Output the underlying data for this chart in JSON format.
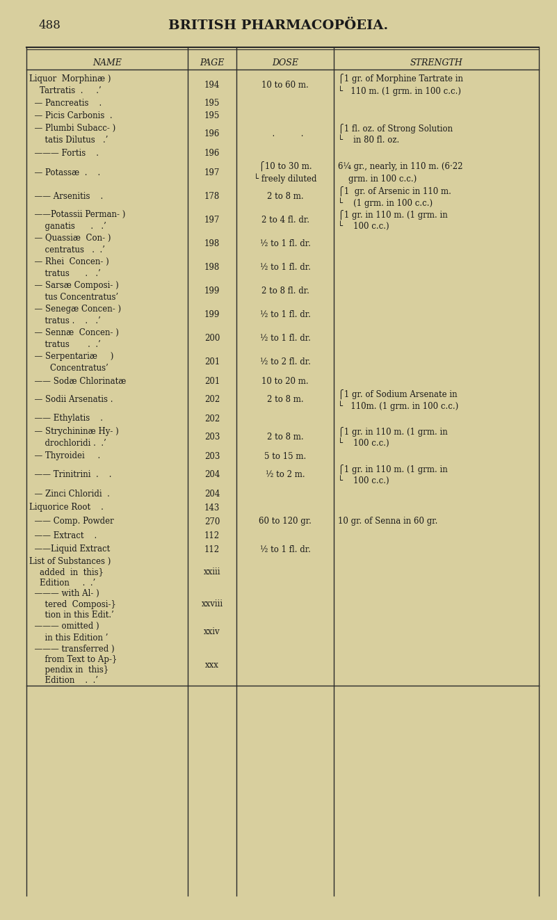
{
  "bg_color": "#d8cf9e",
  "page_num": "488",
  "page_title": "BRITISH PHARMACOPÖEIA.",
  "col_headers": [
    "NAME",
    "PAGE",
    "DOSE",
    "STRENGTH"
  ],
  "rows": [
    {
      "name": "Liquor  Morphinæ\n    Tartratis  .     .⎫",
      "name_lines": [
        "Liquor  Morphinæ )",
        "    Tartratis  .     .}"
      ],
      "page": "194",
      "dose": "10 to 60 m.",
      "strength": "1 gr. of Morphine Tartrate in\n    110 m. (1 grm. in 100 c.c.)",
      "strength_lines": [
        "⎧1 gr. of Morphine Tartrate in",
        "└   110 m. (1 grm. in 100 c.c.)"
      ]
    },
    {
      "name_lines": [
        "  — Pancreatis    ."
      ],
      "page": "195",
      "dose": "",
      "strength": ""
    },
    {
      "name_lines": [
        "  — Picis Carbonis  ."
      ],
      "page": "195",
      "dose": "",
      "strength": ""
    },
    {
      "name_lines": [
        "  — Plumbi Subacc- )",
        "      tatis Dilutus   .}"
      ],
      "page": "196",
      "dose": "  .          .",
      "strength_lines": [
        "⎧1 fl. oz. of Strong Solution",
        "└    in 80 fl. oz."
      ]
    },
    {
      "name_lines": [
        "  ——— Fortis    ."
      ],
      "page": "196",
      "dose": "",
      "strength": ""
    },
    {
      "name_lines": [
        "  — Potassæ  .    ."
      ],
      "page": "197",
      "dose_lines": [
        "⎧10 to 30 m.",
        "└ freely diluted"
      ],
      "strength_lines": [
        "6¼ gr., nearly, in 110 m. (6·22",
        "    grm. in 100 c.c.)"
      ]
    },
    {
      "name_lines": [
        "  —— Arsenitis    ."
      ],
      "page": "178",
      "dose": "2 to 8 m.",
      "strength_lines": [
        "⎧1  gr. of Arsenic in 110 m.",
        "└    (1 grm. in 100 c.c.)"
      ]
    },
    {
      "name_lines": [
        "  ——Potassii Perman- )",
        "      ganatis      .   .}"
      ],
      "page": "197",
      "dose": "2 to 4 fl. dr.",
      "strength_lines": [
        "⎧1 gr. in 110 m. (1 grm. in",
        "└    100 c.c.)"
      ]
    },
    {
      "name_lines": [
        "  — Quassiæ  Con- )",
        "      centratus   .  .}"
      ],
      "page": "198",
      "dose": "½ to 1 fl. dr.",
      "strength": ""
    },
    {
      "name_lines": [
        "  — Rhei  Concen- )",
        "      tratus      .   .}"
      ],
      "page": "198",
      "dose": "½ to 1 fl. dr.",
      "strength": ""
    },
    {
      "name_lines": [
        "  — Sarsæ Composi- )",
        "      tus Concentratus}"
      ],
      "page": "199",
      "dose": "2 to 8 fl. dr.",
      "strength": ""
    },
    {
      "name_lines": [
        "  — Senegæ Concen- )",
        "      tratus .    .   .}"
      ],
      "page": "199",
      "dose": "½ to 1 fl. dr.",
      "strength": ""
    },
    {
      "name_lines": [
        "  — Sennæ  Concen- )",
        "      tratus       .  .}"
      ],
      "page": "200",
      "dose": "½ to 1 fl. dr.",
      "strength": ""
    },
    {
      "name_lines": [
        "  — Serpentariæ     )",
        "        Concentratus}"
      ],
      "page": "201",
      "dose": "½ to 2 fl. dr.",
      "strength": ""
    },
    {
      "name_lines": [
        "  —— Sodæ Chlorinatæ"
      ],
      "page": "201",
      "dose": "10 to 20 m.",
      "strength": ""
    },
    {
      "name_lines": [
        "  — Sodii Arsenatis ."
      ],
      "page": "202",
      "dose": "2 to 8 m.",
      "strength_lines": [
        "⎧1 gr. of Sodium Arsenate in",
        "└   110m. (1 grm. in 100 c.c.)"
      ]
    },
    {
      "name_lines": [
        "  —— Ethylatis    ."
      ],
      "page": "202",
      "dose": "",
      "strength": ""
    },
    {
      "name_lines": [
        "  — Strychininæ Hy- )",
        "      drochloridi .  .}"
      ],
      "page": "203",
      "dose": "2 to 8 m.",
      "strength_lines": [
        "⎧1 gr. in 110 m. (1 grm. in",
        "└    100 c.c.)"
      ]
    },
    {
      "name_lines": [
        "  — Thyroidei     ."
      ],
      "page": "203",
      "dose": "5 to 15 m.",
      "strength": ""
    },
    {
      "name_lines": [
        "  —— Trinitrini  .    ."
      ],
      "page": "204",
      "dose": "½ to 2 m.",
      "strength_lines": [
        "⎧1 gr. in 110 m. (1 grm. in",
        "└    100 c.c.)"
      ]
    },
    {
      "name_lines": [
        "  — Zinci Chloridi  ."
      ],
      "page": "204",
      "dose": "",
      "strength": ""
    },
    {
      "name_lines": [
        "Liquorice Root    ."
      ],
      "page": "143",
      "dose": "",
      "strength": ""
    },
    {
      "name_lines": [
        "  —— Comp. Powder"
      ],
      "page": "270",
      "dose": "60 to 120 gr.",
      "strength": "10 gr. of Senna in 60 gr."
    },
    {
      "name_lines": [
        "  —— Extract    ."
      ],
      "page": "112",
      "dose": "",
      "strength": ""
    },
    {
      "name_lines": [
        "  ——Liquid Extract"
      ],
      "page": "112",
      "dose": "½ to 1 fl. dr.",
      "strength": ""
    },
    {
      "name_lines": [
        "List of Substances )",
        "    added  in  this}",
        "    Edition     .  .}"
      ],
      "page": "xxiii",
      "dose": "",
      "strength": ""
    },
    {
      "name_lines": [
        "  ——— with Al- )",
        "      tered  Composi-}",
        "      tion in this Edit.}"
      ],
      "page": "xxviii",
      "dose": "",
      "strength": ""
    },
    {
      "name_lines": [
        "  ——— omitted )",
        "      in this Edition }"
      ],
      "page": "xxiv",
      "dose": "",
      "strength": ""
    },
    {
      "name_lines": [
        "  ——— transferred )",
        "      from Text to Ap-}",
        "      pendix in  this}",
        "      Edition    .  .}"
      ],
      "page": "xxx",
      "dose": "",
      "strength": ""
    }
  ],
  "text_color": "#1a1a1a",
  "header_color": "#1a1a1a",
  "line_color": "#2a2a2a",
  "font_size": 8.5,
  "title_font_size": 14
}
